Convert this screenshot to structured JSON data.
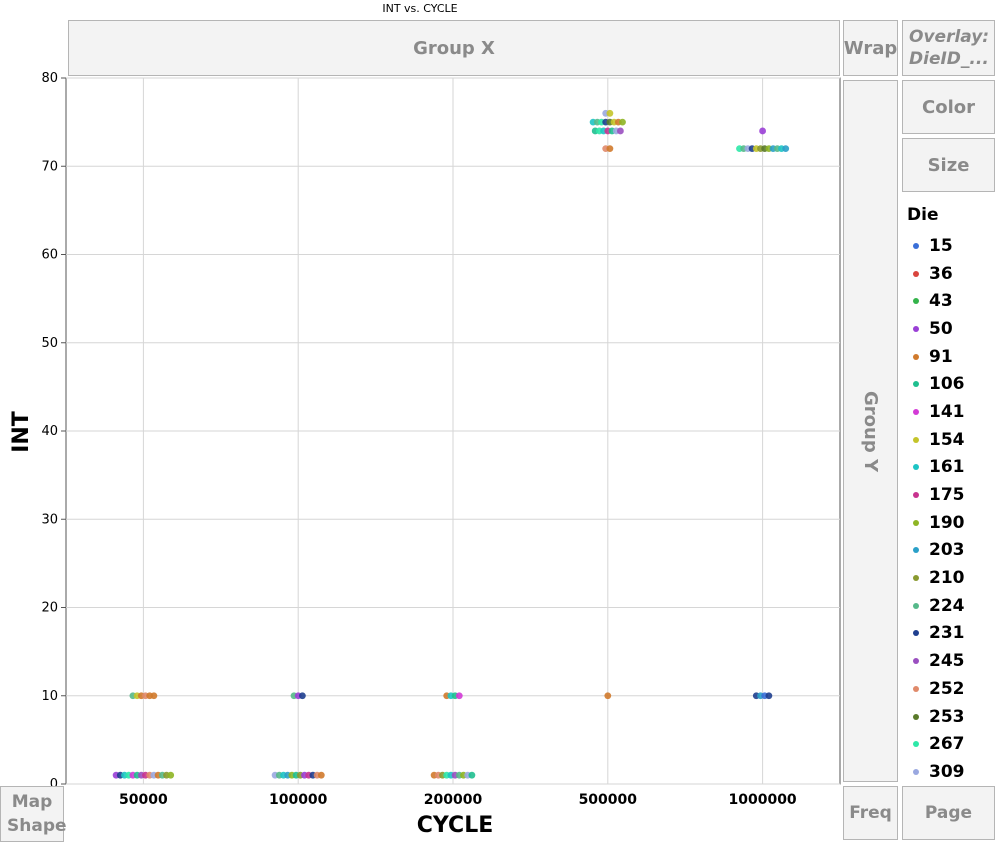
{
  "window": {
    "title": "INT vs. CYCLE"
  },
  "zones": {
    "group_x": "Group X",
    "group_y": "Group Y",
    "wrap": "Wrap",
    "overlay": "Overlay: DieID_...",
    "color": "Color",
    "size": "Size",
    "map_shape": "Map Shape",
    "freq": "Freq",
    "page": "Page"
  },
  "legend": {
    "title": "Die",
    "items": [
      {
        "label": "15",
        "color": "#3a6fd8"
      },
      {
        "label": "36",
        "color": "#d9453e"
      },
      {
        "label": "43",
        "color": "#33b34a"
      },
      {
        "label": "50",
        "color": "#9a3fd6"
      },
      {
        "label": "91",
        "color": "#d07a2c"
      },
      {
        "label": "106",
        "color": "#1fbf8f"
      },
      {
        "label": "141",
        "color": "#d33ad6"
      },
      {
        "label": "154",
        "color": "#c4c42a"
      },
      {
        "label": "161",
        "color": "#1dc4c4"
      },
      {
        "label": "175",
        "color": "#c8338f"
      },
      {
        "label": "190",
        "color": "#8eb524"
      },
      {
        "label": "203",
        "color": "#2aa0c8"
      },
      {
        "label": "210",
        "color": "#8a9a30"
      },
      {
        "label": "224",
        "color": "#56b98a"
      },
      {
        "label": "231",
        "color": "#1f3f8f"
      },
      {
        "label": "245",
        "color": "#9a4fc0"
      },
      {
        "label": "252",
        "color": "#e08a6a"
      },
      {
        "label": "253",
        "color": "#5a7a2a"
      },
      {
        "label": "267",
        "color": "#2ee8a8"
      },
      {
        "label": "309",
        "color": "#9aa8e0"
      }
    ]
  },
  "chart_data": {
    "type": "scatter",
    "title": "INT vs. CYCLE",
    "xlabel": "CYCLE",
    "ylabel": "INT",
    "x_scale": "categorical",
    "categories": [
      "50000",
      "100000",
      "200000",
      "500000",
      "1000000"
    ],
    "ylim": [
      0,
      80
    ],
    "yticks": [
      0,
      10,
      20,
      30,
      40,
      50,
      60,
      70,
      80
    ],
    "grid": true,
    "legend_position": "right",
    "points": [
      {
        "x": "50000",
        "y": 1,
        "die": "50"
      },
      {
        "x": "50000",
        "y": 1,
        "die": "231"
      },
      {
        "x": "50000",
        "y": 1,
        "die": "161"
      },
      {
        "x": "50000",
        "y": 1,
        "die": "267"
      },
      {
        "x": "50000",
        "y": 1,
        "die": "141"
      },
      {
        "x": "50000",
        "y": 1,
        "die": "106"
      },
      {
        "x": "50000",
        "y": 1,
        "die": "245"
      },
      {
        "x": "50000",
        "y": 1,
        "die": "175"
      },
      {
        "x": "50000",
        "y": 1,
        "die": "252"
      },
      {
        "x": "50000",
        "y": 1,
        "die": "309"
      },
      {
        "x": "50000",
        "y": 1,
        "die": "91"
      },
      {
        "x": "50000",
        "y": 1,
        "die": "224"
      },
      {
        "x": "50000",
        "y": 1,
        "die": "210"
      },
      {
        "x": "50000",
        "y": 1,
        "die": "190"
      },
      {
        "x": "50000",
        "y": 10,
        "die": "224"
      },
      {
        "x": "50000",
        "y": 10,
        "die": "154"
      },
      {
        "x": "50000",
        "y": 10,
        "die": "91"
      },
      {
        "x": "50000",
        "y": 10,
        "die": "252"
      },
      {
        "x": "50000",
        "y": 10,
        "die": "91"
      },
      {
        "x": "50000",
        "y": 10,
        "die": "91"
      },
      {
        "x": "100000",
        "y": 1,
        "die": "309"
      },
      {
        "x": "100000",
        "y": 1,
        "die": "224"
      },
      {
        "x": "100000",
        "y": 1,
        "die": "161"
      },
      {
        "x": "100000",
        "y": 1,
        "die": "203"
      },
      {
        "x": "100000",
        "y": 1,
        "die": "190"
      },
      {
        "x": "100000",
        "y": 1,
        "die": "106"
      },
      {
        "x": "100000",
        "y": 1,
        "die": "210"
      },
      {
        "x": "100000",
        "y": 1,
        "die": "50"
      },
      {
        "x": "100000",
        "y": 1,
        "die": "175"
      },
      {
        "x": "100000",
        "y": 1,
        "die": "231"
      },
      {
        "x": "100000",
        "y": 1,
        "die": "252"
      },
      {
        "x": "100000",
        "y": 1,
        "die": "91"
      },
      {
        "x": "100000",
        "y": 10,
        "die": "224"
      },
      {
        "x": "100000",
        "y": 10,
        "die": "50"
      },
      {
        "x": "100000",
        "y": 10,
        "die": "231"
      },
      {
        "x": "200000",
        "y": 1,
        "die": "91"
      },
      {
        "x": "200000",
        "y": 1,
        "die": "252"
      },
      {
        "x": "200000",
        "y": 1,
        "die": "210"
      },
      {
        "x": "200000",
        "y": 1,
        "die": "267"
      },
      {
        "x": "200000",
        "y": 1,
        "die": "161"
      },
      {
        "x": "200000",
        "y": 1,
        "die": "245"
      },
      {
        "x": "200000",
        "y": 1,
        "die": "224"
      },
      {
        "x": "200000",
        "y": 1,
        "die": "190"
      },
      {
        "x": "200000",
        "y": 1,
        "die": "309"
      },
      {
        "x": "200000",
        "y": 1,
        "die": "106"
      },
      {
        "x": "200000",
        "y": 10,
        "die": "91"
      },
      {
        "x": "200000",
        "y": 10,
        "die": "161"
      },
      {
        "x": "200000",
        "y": 10,
        "die": "106"
      },
      {
        "x": "200000",
        "y": 10,
        "die": "141"
      },
      {
        "x": "500000",
        "y": 10,
        "die": "91"
      },
      {
        "x": "500000",
        "y": 76,
        "die": "309"
      },
      {
        "x": "500000",
        "y": 76,
        "die": "154"
      },
      {
        "x": "500000",
        "y": 75,
        "die": "161"
      },
      {
        "x": "500000",
        "y": 75,
        "die": "224"
      },
      {
        "x": "500000",
        "y": 75,
        "die": "267"
      },
      {
        "x": "500000",
        "y": 75,
        "die": "231"
      },
      {
        "x": "500000",
        "y": 75,
        "die": "253"
      },
      {
        "x": "500000",
        "y": 75,
        "die": "154"
      },
      {
        "x": "500000",
        "y": 75,
        "die": "91"
      },
      {
        "x": "500000",
        "y": 75,
        "die": "190"
      },
      {
        "x": "500000",
        "y": 74,
        "die": "106"
      },
      {
        "x": "500000",
        "y": 74,
        "die": "267"
      },
      {
        "x": "500000",
        "y": 74,
        "die": "161"
      },
      {
        "x": "500000",
        "y": 74,
        "die": "175"
      },
      {
        "x": "500000",
        "y": 74,
        "die": "106"
      },
      {
        "x": "500000",
        "y": 74,
        "die": "309"
      },
      {
        "x": "500000",
        "y": 74,
        "die": "245"
      },
      {
        "x": "500000",
        "y": 72,
        "die": "252"
      },
      {
        "x": "500000",
        "y": 72,
        "die": "91"
      },
      {
        "x": "1000000",
        "y": 74,
        "die": "50"
      },
      {
        "x": "1000000",
        "y": 72,
        "die": "267"
      },
      {
        "x": "1000000",
        "y": 72,
        "die": "224"
      },
      {
        "x": "1000000",
        "y": 72,
        "die": "309"
      },
      {
        "x": "1000000",
        "y": 72,
        "die": "231"
      },
      {
        "x": "1000000",
        "y": 72,
        "die": "154"
      },
      {
        "x": "1000000",
        "y": 72,
        "die": "210"
      },
      {
        "x": "1000000",
        "y": 72,
        "die": "253"
      },
      {
        "x": "1000000",
        "y": 72,
        "die": "190"
      },
      {
        "x": "1000000",
        "y": 72,
        "die": "203"
      },
      {
        "x": "1000000",
        "y": 72,
        "die": "224"
      },
      {
        "x": "1000000",
        "y": 72,
        "die": "161"
      },
      {
        "x": "1000000",
        "y": 72,
        "die": "203"
      },
      {
        "x": "1000000",
        "y": 10,
        "die": "231"
      },
      {
        "x": "1000000",
        "y": 10,
        "die": "203"
      },
      {
        "x": "1000000",
        "y": 10,
        "die": "15"
      },
      {
        "x": "1000000",
        "y": 10,
        "die": "231"
      }
    ]
  }
}
